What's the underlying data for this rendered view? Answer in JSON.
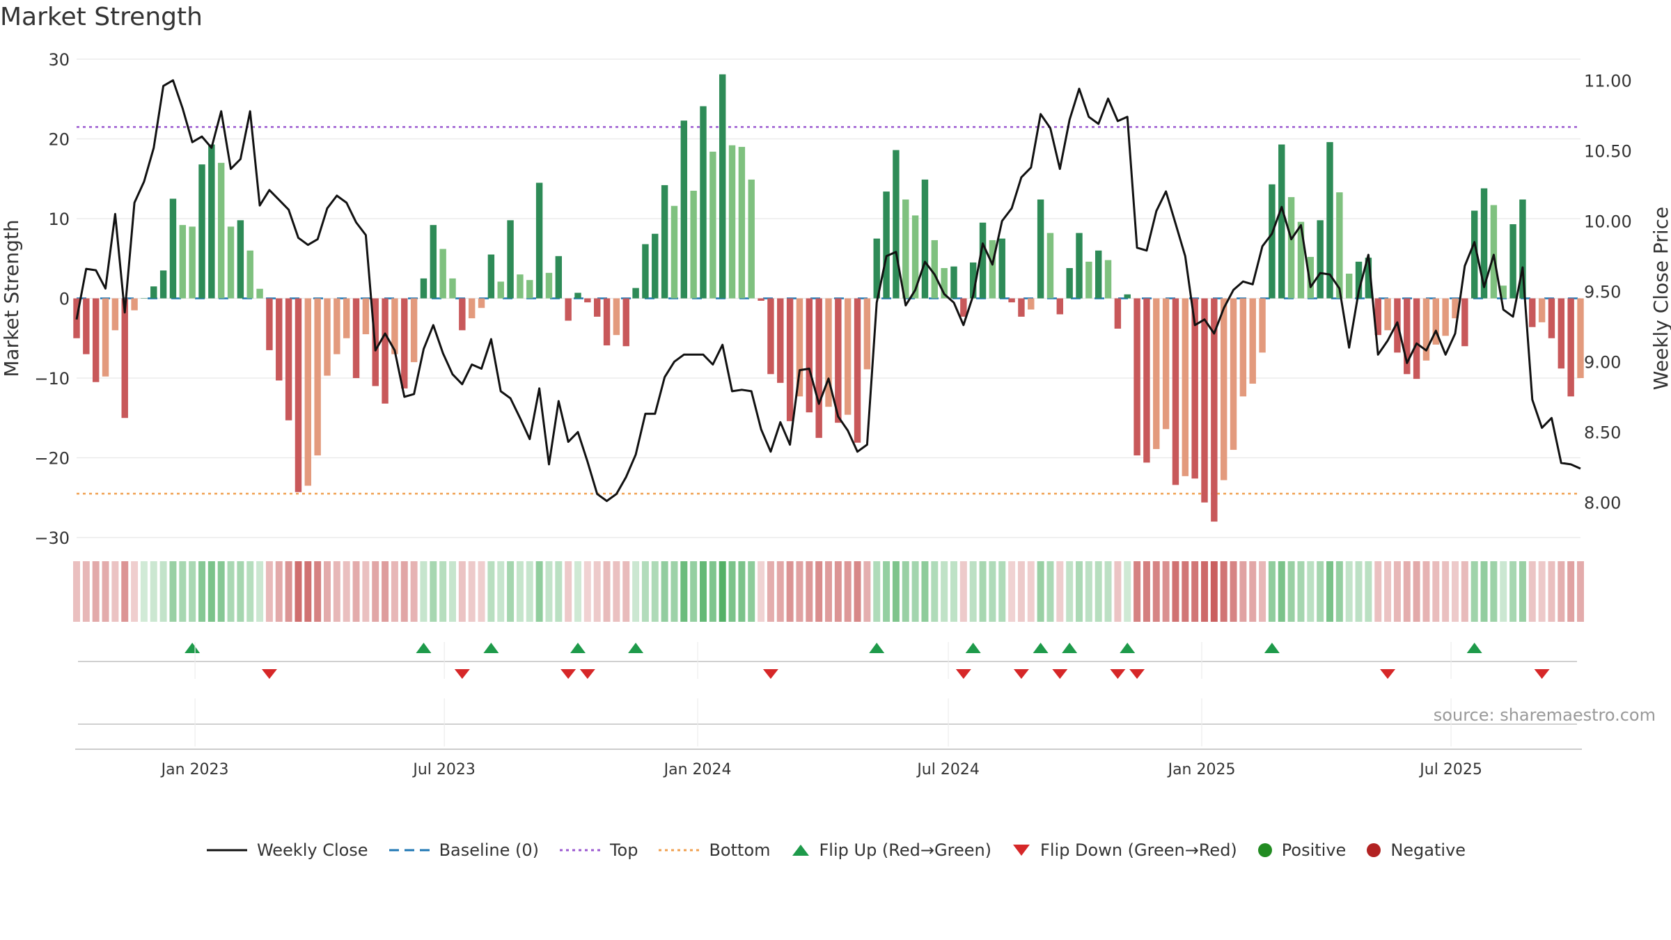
{
  "title": "Market Strength",
  "source": "source: sharemaestro.com",
  "colors": {
    "pos_dark": "#2e8b57",
    "pos_light": "#7fc17f",
    "neg_dark": "#c8585a",
    "neg_light": "#e39a7d",
    "line": "#111111",
    "baseline": "#1f77b4",
    "top": "#9b59d0",
    "bottom": "#f0a050",
    "flip_up": "#1e9a4a",
    "flip_down": "#d62728",
    "positive": "#228b22",
    "negative": "#b22222"
  },
  "chart_data": {
    "type": "bar+line",
    "title": "Market Strength",
    "ylabel": "Market Strength",
    "y2label": "Weekly Close Price",
    "ylim": [
      -30,
      30
    ],
    "y2lim": [
      7.75,
      11.15
    ],
    "yticks": [
      30,
      20,
      10,
      0,
      -10,
      -20,
      -30
    ],
    "ytick_labels": [
      "30",
      "20",
      "10",
      "0",
      "−10",
      "−20",
      "−30"
    ],
    "y2ticks": [
      11.0,
      10.5,
      10.0,
      9.5,
      9.0,
      8.5,
      8.0
    ],
    "y2tick_labels": [
      "11.00",
      "10.50",
      "10.00",
      "9.50",
      "9.00",
      "8.50",
      "8.00"
    ],
    "x_start": "2022-10-07",
    "week_days": 7,
    "xticks": [
      "2023-01-01",
      "2023-07-01",
      "2024-01-01",
      "2024-07-01",
      "2025-01-01",
      "2025-07-01"
    ],
    "xtick_labels": [
      "Jan 2023",
      "Jul 2023",
      "Jan 2024",
      "Jul 2024",
      "Jan 2025",
      "Jul 2025"
    ],
    "top_level": 21.5,
    "bottom_level": -24.5,
    "strength": [
      -5,
      -7,
      -10.5,
      -9.8,
      -4,
      -15,
      -1.5,
      0,
      1.5,
      3.5,
      12.5,
      9.2,
      9,
      16.8,
      19.3,
      17,
      9,
      9.8,
      6,
      1.2,
      -6.5,
      -10.3,
      -15.3,
      -24.3,
      -23.5,
      -19.7,
      -9.7,
      -7,
      -5,
      -10,
      -4.5,
      -11,
      -13.2,
      -7,
      -11.3,
      -8,
      2.5,
      9.2,
      6.2,
      2.5,
      -4,
      -2.5,
      -1.2,
      5.5,
      2.1,
      9.8,
      3,
      2.3,
      14.5,
      3.2,
      5.3,
      -2.8,
      0.7,
      -0.5,
      -2.3,
      -5.9,
      -4.6,
      -6,
      1.3,
      6.8,
      8.1,
      14.2,
      11.6,
      22.3,
      13.5,
      24.1,
      18.4,
      28.1,
      19.2,
      19,
      14.9,
      -0.3,
      -9.5,
      -10.6,
      -15.4,
      -12.3,
      -14.3,
      -17.5,
      -13.6,
      -15.6,
      -14.6,
      -18.1,
      -8.9,
      7.5,
      13.4,
      18.6,
      12.4,
      10.4,
      14.9,
      7.3,
      3.8,
      4,
      -2.3,
      4.5,
      9.5,
      7.3,
      7.5,
      -0.5,
      -2.3,
      -1.4,
      12.4,
      8.2,
      -2,
      3.8,
      8.2,
      4.6,
      6,
      4.8,
      -3.8,
      0.5,
      -19.7,
      -20.6,
      -18.9,
      -16.4,
      -23.4,
      -22.3,
      -22.6,
      -25.6,
      -28,
      -22.8,
      -19,
      -12.3,
      -10.7,
      -6.8,
      14.3,
      19.3,
      12.7,
      9.6,
      5.2,
      9.8,
      19.6,
      13.3,
      3.1,
      4.6,
      5.1,
      -4.6,
      -4,
      -6.8,
      -9.5,
      -10.1,
      -7.8,
      -5.8,
      -4.7,
      -2.5,
      -6,
      11,
      13.8,
      11.7,
      1.6,
      9.3,
      12.4,
      -3.6,
      -3,
      -5,
      -8.8,
      -12.3,
      -10
    ],
    "close": [
      9.3,
      9.66,
      9.65,
      9.52,
      10.05,
      9.35,
      10.13,
      10.28,
      10.52,
      10.96,
      11.0,
      10.8,
      10.56,
      10.6,
      10.52,
      10.78,
      10.37,
      10.44,
      10.78,
      10.11,
      10.22,
      10.15,
      10.08,
      9.88,
      9.83,
      9.87,
      10.09,
      10.18,
      10.13,
      9.99,
      9.9,
      9.08,
      9.2,
      9.08,
      8.75,
      8.77,
      9.09,
      9.26,
      9.06,
      8.91,
      8.84,
      8.98,
      8.95,
      9.16,
      8.79,
      8.74,
      8.6,
      8.45,
      8.81,
      8.27,
      8.72,
      8.43,
      8.5,
      8.29,
      8.06,
      8.01,
      8.06,
      8.18,
      8.34,
      8.63,
      8.63,
      8.89,
      9.0,
      9.05,
      9.05,
      9.05,
      8.98,
      9.12,
      8.79,
      8.8,
      8.79,
      8.52,
      8.36,
      8.57,
      8.41,
      8.94,
      8.95,
      8.7,
      8.88,
      8.61,
      8.51,
      8.36,
      8.41,
      9.42,
      9.75,
      9.78,
      9.4,
      9.51,
      9.71,
      9.62,
      9.48,
      9.42,
      9.26,
      9.47,
      9.84,
      9.69,
      10.0,
      10.09,
      10.31,
      10.38,
      10.76,
      10.66,
      10.37,
      10.72,
      10.94,
      10.74,
      10.69,
      10.87,
      10.71,
      10.74,
      9.81,
      9.79,
      10.07,
      10.21,
      9.98,
      9.75,
      9.26,
      9.3,
      9.2,
      9.38,
      9.51,
      9.57,
      9.55,
      9.82,
      9.91,
      10.1,
      9.87,
      9.97,
      9.53,
      9.63,
      9.62,
      9.52,
      9.1,
      9.5,
      9.76,
      9.05,
      9.15,
      9.28,
      8.99,
      9.13,
      9.08,
      9.22,
      9.05,
      9.2,
      9.68,
      9.85,
      9.53,
      9.76,
      9.37,
      9.32,
      9.67,
      8.73,
      8.53,
      8.6,
      8.28,
      8.27,
      8.24
    ],
    "flip_up_weeks": [
      12,
      36,
      43,
      52,
      58,
      83,
      93,
      100,
      103,
      109,
      124,
      145
    ],
    "flip_down_weeks": [
      20,
      40,
      51,
      53,
      72,
      92,
      98,
      102,
      108,
      110,
      136,
      152
    ],
    "legend": [
      "Weekly Close",
      "Baseline (0)",
      "Top",
      "Bottom",
      "Flip Up (Red→Green)",
      "Flip Down (Green→Red)",
      "Positive",
      "Negative"
    ]
  }
}
